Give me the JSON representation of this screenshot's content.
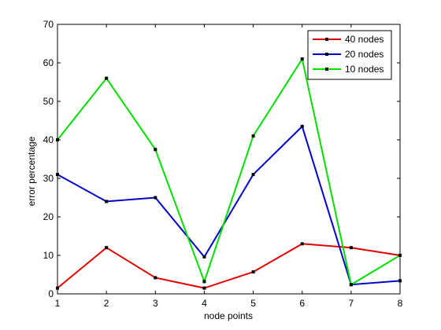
{
  "chart_data": {
    "type": "line",
    "xlabel": "node points",
    "ylabel": "error percentage",
    "xlim": [
      1,
      8
    ],
    "ylim": [
      0,
      70
    ],
    "xticks": [
      1,
      2,
      3,
      4,
      5,
      6,
      7,
      8
    ],
    "yticks": [
      0,
      10,
      20,
      30,
      40,
      50,
      60,
      70
    ],
    "grid": false,
    "legend_position": "top-right",
    "x": [
      1,
      2,
      3,
      4,
      5,
      6,
      7,
      8
    ],
    "series": [
      {
        "name": "40 nodes",
        "color": "#e00000",
        "values": [
          1.5,
          12,
          4.2,
          1.5,
          5.7,
          13,
          12,
          10
        ]
      },
      {
        "name": "20 nodes",
        "color": "#0000d0",
        "values": [
          31,
          24,
          25,
          9.6,
          31,
          43.5,
          2.4,
          3.4
        ]
      },
      {
        "name": "10 nodes",
        "color": "#00e000",
        "values": [
          40,
          56,
          37.5,
          3.2,
          41,
          61,
          2.4,
          10
        ]
      }
    ]
  }
}
